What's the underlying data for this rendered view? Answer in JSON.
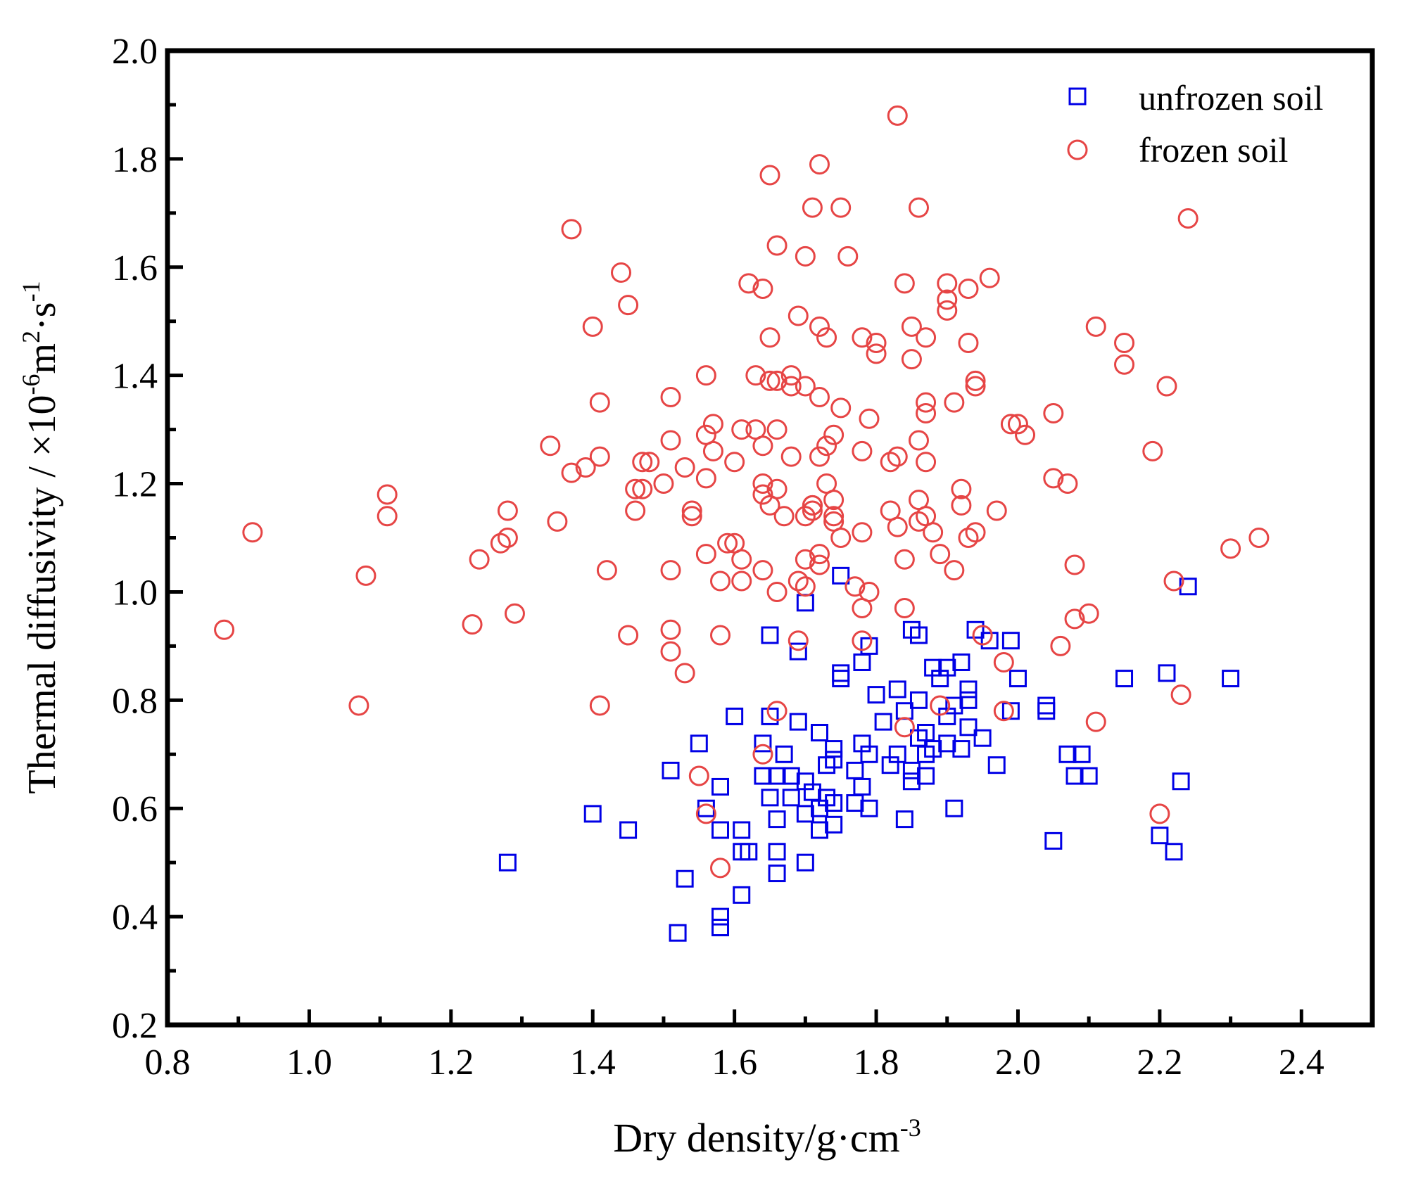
{
  "chart_data": {
    "type": "scatter",
    "title": "",
    "xlabel": {
      "base": "Dry density/g·cm",
      "sup": "-3"
    },
    "ylabel": {
      "part1": "Thermal diffusivity / ×10",
      "sup1": "-6",
      "part2": "m",
      "sup2": "2",
      "part3": "·s",
      "sup3": "-1"
    },
    "xlim": [
      0.8,
      2.5
    ],
    "ylim": [
      0.2,
      2.0
    ],
    "xticks": [
      "0.8",
      "1.0",
      "1.2",
      "1.4",
      "1.6",
      "1.8",
      "2.0",
      "2.2",
      "2.4"
    ],
    "yticks": [
      "0.2",
      "0.4",
      "0.6",
      "0.8",
      "1.0",
      "1.2",
      "1.4",
      "1.6",
      "1.8",
      "2.0"
    ],
    "legend_position": "top-right",
    "colors": {
      "unfrozen": "#0000e6",
      "frozen": "#e64545"
    },
    "series": [
      {
        "name": "unfrozen soil",
        "marker": "square",
        "points": [
          [
            1.28,
            0.5
          ],
          [
            1.4,
            0.59
          ],
          [
            1.45,
            0.56
          ],
          [
            1.51,
            0.67
          ],
          [
            1.52,
            0.37
          ],
          [
            1.53,
            0.47
          ],
          [
            1.55,
            0.72
          ],
          [
            1.56,
            0.6
          ],
          [
            1.58,
            0.4
          ],
          [
            1.58,
            0.38
          ],
          [
            1.58,
            0.64
          ],
          [
            1.58,
            0.56
          ],
          [
            1.6,
            0.77
          ],
          [
            1.61,
            0.56
          ],
          [
            1.61,
            0.52
          ],
          [
            1.61,
            0.44
          ],
          [
            1.62,
            0.52
          ],
          [
            1.64,
            0.72
          ],
          [
            1.64,
            0.66
          ],
          [
            1.65,
            0.77
          ],
          [
            1.65,
            0.92
          ],
          [
            1.65,
            0.62
          ],
          [
            1.66,
            0.58
          ],
          [
            1.66,
            0.66
          ],
          [
            1.66,
            0.52
          ],
          [
            1.66,
            0.48
          ],
          [
            1.67,
            0.7
          ],
          [
            1.68,
            0.66
          ],
          [
            1.68,
            0.62
          ],
          [
            1.69,
            0.76
          ],
          [
            1.69,
            0.89
          ],
          [
            1.7,
            0.98
          ],
          [
            1.7,
            0.59
          ],
          [
            1.7,
            0.5
          ],
          [
            1.7,
            0.65
          ],
          [
            1.71,
            0.63
          ],
          [
            1.72,
            0.74
          ],
          [
            1.72,
            0.6
          ],
          [
            1.72,
            0.56
          ],
          [
            1.73,
            0.62
          ],
          [
            1.73,
            0.68
          ],
          [
            1.74,
            0.71
          ],
          [
            1.74,
            0.69
          ],
          [
            1.74,
            0.57
          ],
          [
            1.74,
            0.61
          ],
          [
            1.75,
            0.84
          ],
          [
            1.75,
            0.85
          ],
          [
            1.75,
            1.03
          ],
          [
            1.77,
            0.67
          ],
          [
            1.77,
            0.61
          ],
          [
            1.78,
            0.72
          ],
          [
            1.78,
            0.64
          ],
          [
            1.78,
            0.87
          ],
          [
            1.79,
            0.6
          ],
          [
            1.79,
            0.9
          ],
          [
            1.79,
            0.7
          ],
          [
            1.8,
            0.81
          ],
          [
            1.81,
            0.76
          ],
          [
            1.82,
            0.68
          ],
          [
            1.83,
            0.7
          ],
          [
            1.83,
            0.82
          ],
          [
            1.84,
            0.58
          ],
          [
            1.84,
            0.78
          ],
          [
            1.85,
            0.67
          ],
          [
            1.85,
            0.65
          ],
          [
            1.85,
            0.93
          ],
          [
            1.86,
            0.73
          ],
          [
            1.86,
            0.8
          ],
          [
            1.86,
            0.92
          ],
          [
            1.87,
            0.7
          ],
          [
            1.87,
            0.66
          ],
          [
            1.87,
            0.74
          ],
          [
            1.88,
            0.71
          ],
          [
            1.88,
            0.86
          ],
          [
            1.89,
            0.84
          ],
          [
            1.9,
            0.77
          ],
          [
            1.9,
            0.72
          ],
          [
            1.9,
            0.86
          ],
          [
            1.91,
            0.6
          ],
          [
            1.91,
            0.79
          ],
          [
            1.92,
            0.71
          ],
          [
            1.92,
            0.87
          ],
          [
            1.93,
            0.82
          ],
          [
            1.93,
            0.75
          ],
          [
            1.93,
            0.8
          ],
          [
            1.94,
            0.93
          ],
          [
            1.95,
            0.73
          ],
          [
            1.96,
            0.91
          ],
          [
            1.97,
            0.68
          ],
          [
            1.99,
            0.78
          ],
          [
            1.99,
            0.91
          ],
          [
            2.0,
            0.84
          ],
          [
            2.04,
            0.78
          ],
          [
            2.04,
            0.79
          ],
          [
            2.05,
            0.54
          ],
          [
            2.07,
            0.7
          ],
          [
            2.08,
            0.66
          ],
          [
            2.09,
            0.7
          ],
          [
            2.1,
            0.66
          ],
          [
            2.15,
            0.84
          ],
          [
            2.2,
            0.55
          ],
          [
            2.21,
            0.85
          ],
          [
            2.22,
            0.52
          ],
          [
            2.23,
            0.65
          ],
          [
            2.24,
            1.01
          ],
          [
            2.3,
            0.84
          ]
        ]
      },
      {
        "name": "frozen soil",
        "marker": "circle",
        "points": [
          [
            0.88,
            0.93
          ],
          [
            0.92,
            1.11
          ],
          [
            1.07,
            0.79
          ],
          [
            1.08,
            1.03
          ],
          [
            1.11,
            1.18
          ],
          [
            1.11,
            1.14
          ],
          [
            1.23,
            0.94
          ],
          [
            1.24,
            1.06
          ],
          [
            1.27,
            1.09
          ],
          [
            1.28,
            1.15
          ],
          [
            1.28,
            1.1
          ],
          [
            1.29,
            0.96
          ],
          [
            1.34,
            1.27
          ],
          [
            1.35,
            1.13
          ],
          [
            1.37,
            1.22
          ],
          [
            1.37,
            1.67
          ],
          [
            1.39,
            1.23
          ],
          [
            1.4,
            1.49
          ],
          [
            1.41,
            1.35
          ],
          [
            1.41,
            1.25
          ],
          [
            1.41,
            0.79
          ],
          [
            1.42,
            1.04
          ],
          [
            1.44,
            1.59
          ],
          [
            1.45,
            1.53
          ],
          [
            1.45,
            0.92
          ],
          [
            1.46,
            1.19
          ],
          [
            1.46,
            1.15
          ],
          [
            1.47,
            1.19
          ],
          [
            1.47,
            1.24
          ],
          [
            1.48,
            1.24
          ],
          [
            1.5,
            1.2
          ],
          [
            1.51,
            1.36
          ],
          [
            1.51,
            1.28
          ],
          [
            1.51,
            1.04
          ],
          [
            1.51,
            0.93
          ],
          [
            1.51,
            0.89
          ],
          [
            1.53,
            1.23
          ],
          [
            1.53,
            0.85
          ],
          [
            1.54,
            1.15
          ],
          [
            1.54,
            1.14
          ],
          [
            1.55,
            0.66
          ],
          [
            1.56,
            1.4
          ],
          [
            1.56,
            1.29
          ],
          [
            1.56,
            1.21
          ],
          [
            1.56,
            1.07
          ],
          [
            1.56,
            0.59
          ],
          [
            1.57,
            1.31
          ],
          [
            1.57,
            1.26
          ],
          [
            1.58,
            0.92
          ],
          [
            1.58,
            1.02
          ],
          [
            1.58,
            0.49
          ],
          [
            1.59,
            1.09
          ],
          [
            1.6,
            1.24
          ],
          [
            1.6,
            1.09
          ],
          [
            1.61,
            1.3
          ],
          [
            1.61,
            1.06
          ],
          [
            1.61,
            1.02
          ],
          [
            1.62,
            1.57
          ],
          [
            1.63,
            1.4
          ],
          [
            1.63,
            1.3
          ],
          [
            1.64,
            1.27
          ],
          [
            1.64,
            1.2
          ],
          [
            1.64,
            1.18
          ],
          [
            1.64,
            1.04
          ],
          [
            1.64,
            1.56
          ],
          [
            1.64,
            0.7
          ],
          [
            1.65,
            1.77
          ],
          [
            1.65,
            1.47
          ],
          [
            1.65,
            1.39
          ],
          [
            1.65,
            1.16
          ],
          [
            1.66,
            1.64
          ],
          [
            1.66,
            1.39
          ],
          [
            1.66,
            1.3
          ],
          [
            1.66,
            1.19
          ],
          [
            1.66,
            1.0
          ],
          [
            1.66,
            0.78
          ],
          [
            1.67,
            1.14
          ],
          [
            1.68,
            1.38
          ],
          [
            1.68,
            1.25
          ],
          [
            1.68,
            1.4
          ],
          [
            1.69,
            1.51
          ],
          [
            1.69,
            1.02
          ],
          [
            1.69,
            0.91
          ],
          [
            1.7,
            1.62
          ],
          [
            1.7,
            1.38
          ],
          [
            1.7,
            1.14
          ],
          [
            1.7,
            1.06
          ],
          [
            1.7,
            1.01
          ],
          [
            1.71,
            1.16
          ],
          [
            1.71,
            1.16
          ],
          [
            1.71,
            1.15
          ],
          [
            1.71,
            1.71
          ],
          [
            1.72,
            1.79
          ],
          [
            1.72,
            1.49
          ],
          [
            1.72,
            1.36
          ],
          [
            1.72,
            1.25
          ],
          [
            1.72,
            1.07
          ],
          [
            1.72,
            1.05
          ],
          [
            1.73,
            1.47
          ],
          [
            1.73,
            1.27
          ],
          [
            1.73,
            1.2
          ],
          [
            1.74,
            1.29
          ],
          [
            1.74,
            1.17
          ],
          [
            1.74,
            1.14
          ],
          [
            1.74,
            1.13
          ],
          [
            1.75,
            1.34
          ],
          [
            1.75,
            1.1
          ],
          [
            1.75,
            1.71
          ],
          [
            1.76,
            1.62
          ],
          [
            1.77,
            1.01
          ],
          [
            1.78,
            0.97
          ],
          [
            1.78,
            0.91
          ],
          [
            1.78,
            1.11
          ],
          [
            1.78,
            1.26
          ],
          [
            1.78,
            1.47
          ],
          [
            1.79,
            1.0
          ],
          [
            1.79,
            1.32
          ],
          [
            1.8,
            1.46
          ],
          [
            1.8,
            1.44
          ],
          [
            1.82,
            1.24
          ],
          [
            1.82,
            1.15
          ],
          [
            1.83,
            1.12
          ],
          [
            1.83,
            1.25
          ],
          [
            1.83,
            1.88
          ],
          [
            1.84,
            1.57
          ],
          [
            1.84,
            1.06
          ],
          [
            1.84,
            0.97
          ],
          [
            1.84,
            0.75
          ],
          [
            1.85,
            1.49
          ],
          [
            1.85,
            1.43
          ],
          [
            1.86,
            1.71
          ],
          [
            1.86,
            1.17
          ],
          [
            1.86,
            1.13
          ],
          [
            1.86,
            1.28
          ],
          [
            1.87,
            1.47
          ],
          [
            1.87,
            1.35
          ],
          [
            1.87,
            1.33
          ],
          [
            1.87,
            1.24
          ],
          [
            1.87,
            1.14
          ],
          [
            1.88,
            1.11
          ],
          [
            1.89,
            1.07
          ],
          [
            1.89,
            0.79
          ],
          [
            1.9,
            1.52
          ],
          [
            1.9,
            1.54
          ],
          [
            1.9,
            1.57
          ],
          [
            1.91,
            1.35
          ],
          [
            1.91,
            1.04
          ],
          [
            1.92,
            1.16
          ],
          [
            1.92,
            1.19
          ],
          [
            1.93,
            1.1
          ],
          [
            1.93,
            1.46
          ],
          [
            1.93,
            1.56
          ],
          [
            1.94,
            1.39
          ],
          [
            1.94,
            1.38
          ],
          [
            1.94,
            1.11
          ],
          [
            1.95,
            0.92
          ],
          [
            1.96,
            1.58
          ],
          [
            1.97,
            1.15
          ],
          [
            1.98,
            0.87
          ],
          [
            1.98,
            0.78
          ],
          [
            1.99,
            1.31
          ],
          [
            2.0,
            1.31
          ],
          [
            2.01,
            1.29
          ],
          [
            2.05,
            1.33
          ],
          [
            2.05,
            1.21
          ],
          [
            2.06,
            0.9
          ],
          [
            2.07,
            1.2
          ],
          [
            2.08,
            1.05
          ],
          [
            2.08,
            0.95
          ],
          [
            2.1,
            0.96
          ],
          [
            2.11,
            1.49
          ],
          [
            2.11,
            0.76
          ],
          [
            2.15,
            1.46
          ],
          [
            2.15,
            1.42
          ],
          [
            2.19,
            1.26
          ],
          [
            2.2,
            0.59
          ],
          [
            2.21,
            1.38
          ],
          [
            2.22,
            1.02
          ],
          [
            2.23,
            0.81
          ],
          [
            2.24,
            1.69
          ],
          [
            2.3,
            1.08
          ],
          [
            2.34,
            1.1
          ]
        ]
      }
    ]
  }
}
